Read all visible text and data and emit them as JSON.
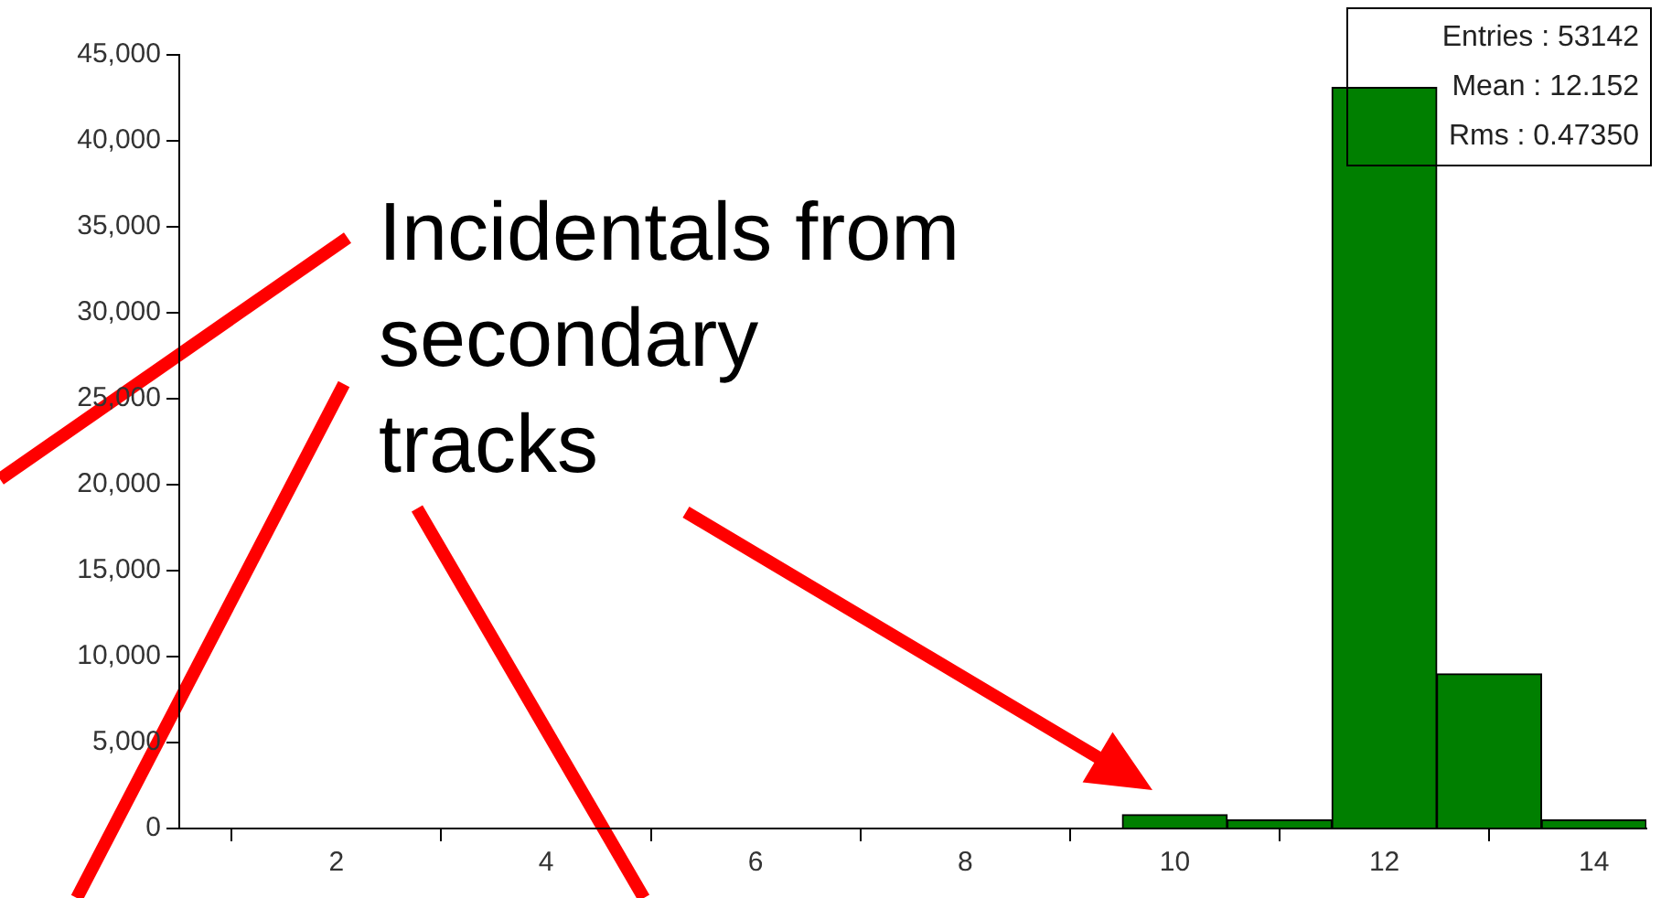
{
  "chart_data": {
    "type": "histogram",
    "bins": [
      9.5,
      10.5,
      11.5,
      12.5,
      13.5,
      14.5
    ],
    "values": [
      800,
      500,
      43100,
      9000,
      500
    ],
    "color": "#007f00",
    "xlim": [
      0.5,
      14.5
    ],
    "xticks": [
      2,
      4,
      6,
      8,
      10,
      12,
      14
    ],
    "ylim": [
      0,
      45000
    ],
    "yticks": [
      {
        "value": 0,
        "label": "0"
      },
      {
        "value": 5000,
        "label": "5,000"
      },
      {
        "value": 10000,
        "label": "10,000"
      },
      {
        "value": 15000,
        "label": "15,000"
      },
      {
        "value": 20000,
        "label": "20,000"
      },
      {
        "value": 25000,
        "label": "25,000"
      },
      {
        "value": 30000,
        "label": "30,000"
      },
      {
        "value": 35000,
        "label": "35,000"
      },
      {
        "value": 40000,
        "label": "40,000"
      },
      {
        "value": 45000,
        "label": "45,000"
      }
    ],
    "annotations": [
      "Incidentals from secondary tracks",
      "Entries : 53142",
      "Mean :   12.152",
      "Rms : 0.47350"
    ]
  }
}
